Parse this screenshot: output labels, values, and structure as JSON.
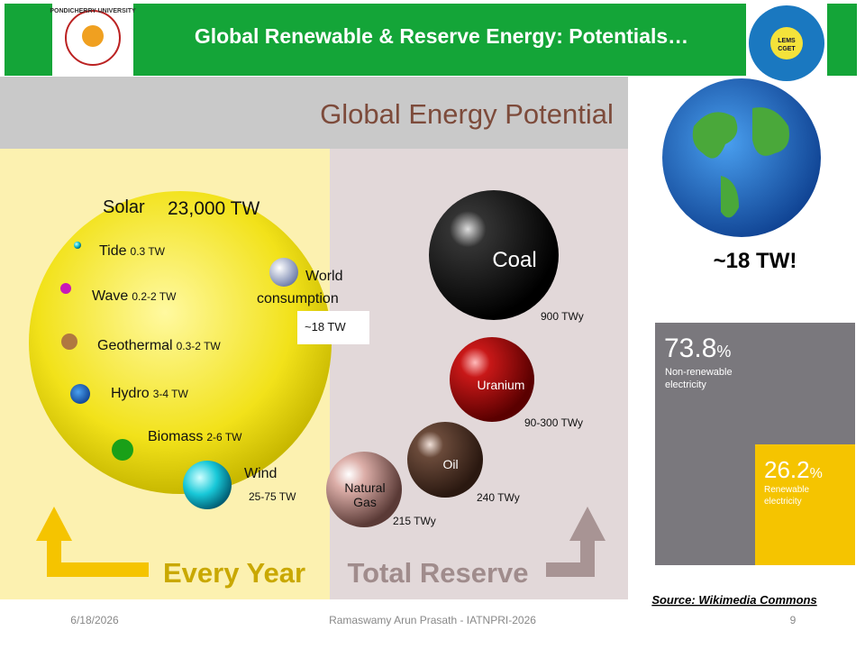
{
  "header": {
    "title": "Global Renewable & Reserve Energy: Potentials…",
    "left_logo": "PONDICHERRY UNIVERSITY",
    "right_logo": [
      "LEMS",
      "CGET"
    ]
  },
  "figure": {
    "title": "Global Energy Potential",
    "solar": {
      "name": "Solar",
      "value": "23,000 TW"
    },
    "renewables": [
      {
        "name": "Tide",
        "value": "0.3 TW"
      },
      {
        "name": "Wave",
        "value": "0.2-2 TW"
      },
      {
        "name": "Geothermal",
        "value": "0.3-2 TW"
      },
      {
        "name": "Hydro",
        "value": "3-4 TW"
      },
      {
        "name": "Biomass",
        "value": "2-6 TW"
      },
      {
        "name": "Wind",
        "value": "25-75 TW"
      }
    ],
    "consumption": {
      "label": [
        "World",
        "consumption"
      ],
      "value": "~18 TW"
    },
    "reserves": [
      {
        "name": [
          "Coal"
        ],
        "value": "900 TWy"
      },
      {
        "name": [
          "Uranium"
        ],
        "value": "90-300 TWy"
      },
      {
        "name": [
          "Oil"
        ],
        "value": "240 TWy"
      },
      {
        "name": [
          "Natural",
          "Gas"
        ],
        "value": "215 TWy"
      }
    ],
    "every_year": "Every Year",
    "total_reserve": "Total Reserve"
  },
  "side": {
    "callout": "~18 TW!",
    "nonrenewable": {
      "number": "73.8",
      "unit": "%",
      "label": [
        "Non-renewable",
        "electricity"
      ]
    },
    "renewable": {
      "number": "26.2",
      "unit": "%",
      "label": [
        "Renewable",
        "electricity"
      ]
    },
    "source": "Source: Wikimedia Commons"
  },
  "footer": {
    "date": "6/18/2026",
    "presenter": "Ramaswamy Arun Prasath -  IATNPRI-2026",
    "page": "9"
  }
}
